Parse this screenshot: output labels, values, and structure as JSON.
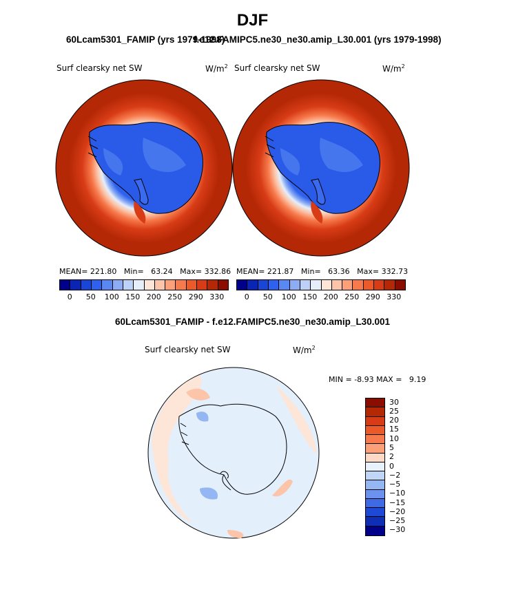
{
  "season": "DJF",
  "panel_left": {
    "title": "60Lcam5301_FAMIP (yrs 1979-1998)",
    "variable": "Surf clearsky net SW",
    "units_base": "W/m",
    "units_exp": "2",
    "mean_label": "MEAN=",
    "mean": "221.80",
    "min_label": "Min=",
    "min": "63.24",
    "max_label": "Max=",
    "max": "332.86"
  },
  "panel_right": {
    "title": "f.e12.FAMIPC5.ne30_ne30.amip_L30.001 (yrs 1979-1998)",
    "variable": "Surf clearsky net SW",
    "units_base": "W/m",
    "units_exp": "2",
    "mean_label": "MEAN=",
    "mean": "221.87",
    "min_label": "Min=",
    "min": "63.36",
    "max_label": "Max=",
    "max": "332.73"
  },
  "panel_diff": {
    "title": "60Lcam5301_FAMIP - f.e12.FAMIPC5.ne30_ne30.amip_L30.001",
    "variable": "Surf clearsky net SW",
    "units_base": "W/m",
    "units_exp": "2",
    "min_label": "MIN =",
    "min": "-8.93",
    "max_label": "MAX =",
    "max": "9.19"
  },
  "abs_colorbar": {
    "colors": [
      "#00008b",
      "#0a25b4",
      "#1a46d8",
      "#2e62ee",
      "#5a88f2",
      "#8cacf4",
      "#bcd0f8",
      "#e6eefa",
      "#fde6d8",
      "#fcc4a8",
      "#fca07a",
      "#f77a4c",
      "#ec5a2a",
      "#d83c16",
      "#b52806",
      "#8b0d00"
    ],
    "tick_labels": [
      "0",
      "50",
      "100",
      "150",
      "200",
      "250",
      "290",
      "330"
    ]
  },
  "diff_colorbar": {
    "colors": [
      "#8b0d00",
      "#b52806",
      "#d83c16",
      "#ec5a2a",
      "#f77a4c",
      "#fca07a",
      "#fddac6",
      "#e8f2fb",
      "#bfd6f6",
      "#94b6f2",
      "#6a92ee",
      "#3f6ae6",
      "#1e48d6",
      "#0e2eb6",
      "#00008b"
    ],
    "tick_labels": [
      "30",
      "25",
      "20",
      "15",
      "10",
      "5",
      "2",
      "0",
      "−2",
      "−5",
      "−10",
      "−15",
      "−20",
      "−25",
      "−30"
    ]
  }
}
